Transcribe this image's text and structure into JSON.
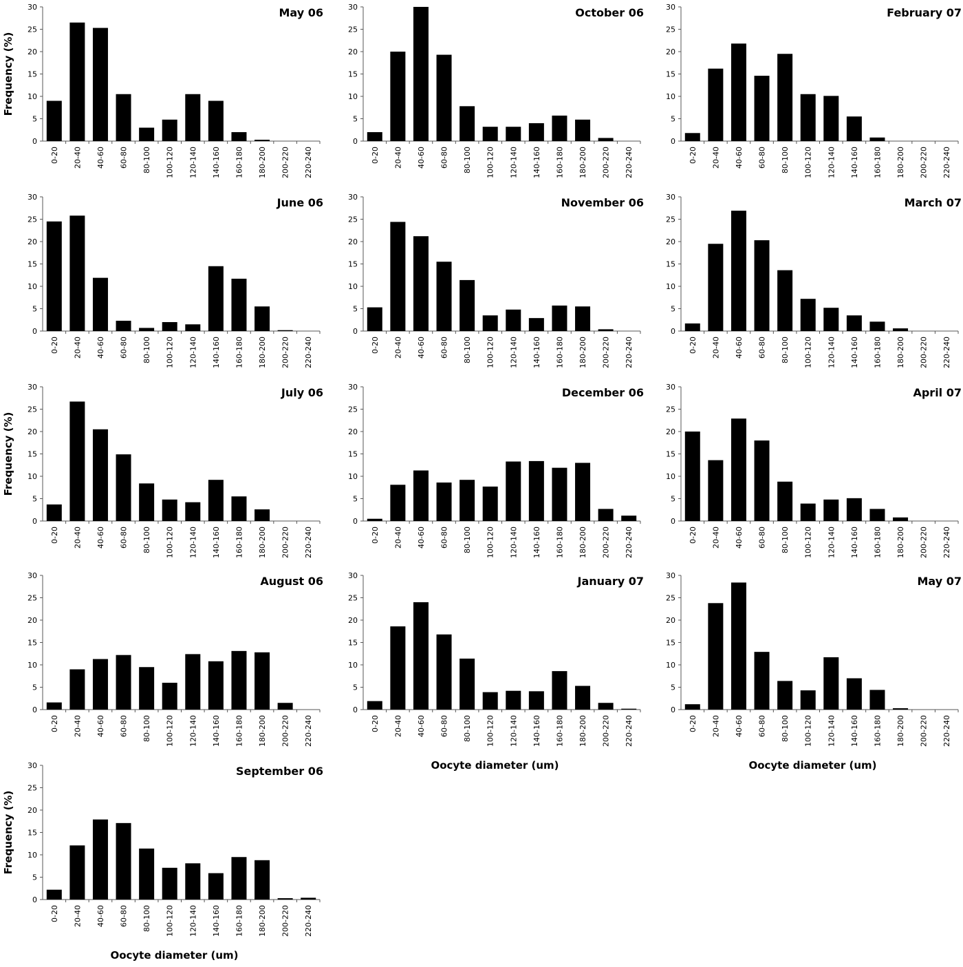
{
  "chart_data": [
    {
      "type": "bar",
      "title": "May 06",
      "y_label": "Frequency (%)",
      "categories": [
        "0-20",
        "20-40",
        "40-60",
        "60-80",
        "80-100",
        "100-120",
        "120-140",
        "140-160",
        "160-180",
        "180-200",
        "200-220",
        "220-240"
      ],
      "values": [
        9,
        26.5,
        25.3,
        10.5,
        3,
        4.8,
        10.5,
        9,
        2,
        0.3,
        0,
        0
      ],
      "color": "#000000",
      "ylim": [
        0,
        30
      ],
      "yticks": [
        0,
        5,
        10,
        15,
        20,
        25,
        30
      ]
    },
    {
      "type": "bar",
      "title": "June 06",
      "categories": [
        "0-20",
        "20-40",
        "40-60",
        "60-80",
        "80-100",
        "100-120",
        "120-140",
        "140-160",
        "160-180",
        "180-200",
        "200-220",
        "220-240"
      ],
      "values": [
        24.5,
        25.8,
        11.9,
        2.3,
        0.7,
        2,
        1.5,
        14.5,
        11.7,
        5.5,
        0.2,
        0
      ],
      "color": "#000000",
      "ylim": [
        0,
        30
      ],
      "yticks": [
        0,
        5,
        10,
        15,
        20,
        25,
        30
      ]
    },
    {
      "type": "bar",
      "title": "July 06",
      "y_label": "Frequency (%)",
      "categories": [
        "0-20",
        "20-40",
        "40-60",
        "60-80",
        "80-100",
        "100-120",
        "120-140",
        "140-160",
        "160-180",
        "180-200",
        "200-220",
        "220-240"
      ],
      "values": [
        3.7,
        26.7,
        20.5,
        14.9,
        8.4,
        4.8,
        4.2,
        9.2,
        5.5,
        2.6,
        0,
        0
      ],
      "color": "#000000",
      "ylim": [
        0,
        30
      ],
      "yticks": [
        0,
        5,
        10,
        15,
        20,
        25,
        30
      ]
    },
    {
      "type": "bar",
      "title": "August 06",
      "categories": [
        "0-20",
        "20-40",
        "40-60",
        "60-80",
        "80-100",
        "100-120",
        "120-140",
        "140-160",
        "160-180",
        "180-200",
        "200-220",
        "220-240"
      ],
      "values": [
        1.6,
        9,
        11.3,
        12.2,
        9.5,
        6,
        12.4,
        10.8,
        13.1,
        12.8,
        1.5,
        0
      ],
      "color": "#000000",
      "ylim": [
        0,
        30
      ],
      "yticks": [
        0,
        5,
        10,
        15,
        20,
        25,
        30
      ]
    },
    {
      "type": "bar",
      "title": "September 06",
      "y_label": "Frequency (%)",
      "x_label": "Oocyte diameter (um)",
      "categories": [
        "0-20",
        "20-40",
        "40-60",
        "60-80",
        "80-100",
        "100-120",
        "120-140",
        "140-160",
        "160-180",
        "180-200",
        "200-220",
        "220-240"
      ],
      "values": [
        2.2,
        12.1,
        17.9,
        17.1,
        11.4,
        7.1,
        8.1,
        5.9,
        9.5,
        8.8,
        0.3,
        0.4
      ],
      "color": "#000000",
      "ylim": [
        0,
        30
      ],
      "yticks": [
        0,
        5,
        10,
        15,
        20,
        25,
        30
      ]
    },
    {
      "type": "bar",
      "title": "October 06",
      "categories": [
        "0-20",
        "20-40",
        "40-60",
        "60-80",
        "80-100",
        "100-120",
        "120-140",
        "140-160",
        "160-180",
        "180-200",
        "200-220",
        "220-240"
      ],
      "values": [
        2,
        20,
        30,
        19.3,
        7.8,
        3.2,
        3.2,
        4,
        5.7,
        4.8,
        0.7,
        0
      ],
      "color": "#000000",
      "ylim": [
        0,
        30
      ],
      "yticks": [
        0,
        5,
        10,
        15,
        20,
        25,
        30
      ]
    },
    {
      "type": "bar",
      "title": "November 06",
      "categories": [
        "0-20",
        "20-40",
        "40-60",
        "60-80",
        "80-100",
        "100-120",
        "120-140",
        "140-160",
        "160-180",
        "180-200",
        "200-220",
        "220-240"
      ],
      "values": [
        5.3,
        24.4,
        21.2,
        15.5,
        11.4,
        3.5,
        4.8,
        2.9,
        5.7,
        5.5,
        0.4,
        0
      ],
      "color": "#000000",
      "ylim": [
        0,
        30
      ],
      "yticks": [
        0,
        5,
        10,
        15,
        20,
        25,
        30
      ]
    },
    {
      "type": "bar",
      "title": "December 06",
      "categories": [
        "0-20",
        "20-40",
        "40-60",
        "60-80",
        "80-100",
        "100-120",
        "120-140",
        "140-160",
        "160-180",
        "180-200",
        "200-220",
        "220-240"
      ],
      "values": [
        0.5,
        8.1,
        11.3,
        8.6,
        9.2,
        7.7,
        13.3,
        13.4,
        11.9,
        13,
        2.7,
        1.2
      ],
      "color": "#000000",
      "ylim": [
        0,
        30
      ],
      "yticks": [
        0,
        5,
        10,
        15,
        20,
        25,
        30
      ]
    },
    {
      "type": "bar",
      "title": "January 07",
      "x_label": "Oocyte diameter (um)",
      "categories": [
        "0-20",
        "20-40",
        "40-60",
        "60-80",
        "80-100",
        "100-120",
        "120-140",
        "140-160",
        "160-180",
        "180-200",
        "200-220",
        "220-240"
      ],
      "values": [
        1.9,
        18.6,
        24,
        16.8,
        11.4,
        3.9,
        4.2,
        4.1,
        8.6,
        5.3,
        1.5,
        0.2
      ],
      "color": "#000000",
      "ylim": [
        0,
        30
      ],
      "yticks": [
        0,
        5,
        10,
        15,
        20,
        25,
        30
      ]
    },
    {
      "type": "bar",
      "title": "February 07",
      "categories": [
        "0-20",
        "20-40",
        "40-60",
        "60-80",
        "80-100",
        "100-120",
        "120-140",
        "140-160",
        "160-180",
        "180-200",
        "200-220",
        "220-240"
      ],
      "values": [
        1.8,
        16.2,
        21.8,
        14.6,
        19.5,
        10.5,
        10.1,
        5.5,
        0.8,
        0,
        0,
        0
      ],
      "color": "#000000",
      "ylim": [
        0,
        30
      ],
      "yticks": [
        0,
        5,
        10,
        15,
        20,
        25,
        30
      ]
    },
    {
      "type": "bar",
      "title": "March 07",
      "categories": [
        "0-20",
        "20-40",
        "40-60",
        "60-80",
        "80-100",
        "100-120",
        "120-140",
        "140-160",
        "160-180",
        "180-200",
        "200-220",
        "220-240"
      ],
      "values": [
        1.7,
        19.5,
        26.9,
        20.3,
        13.6,
        7.2,
        5.2,
        3.5,
        2.1,
        0.6,
        0,
        0
      ],
      "color": "#000000",
      "ylim": [
        0,
        30
      ],
      "yticks": [
        0,
        5,
        10,
        15,
        20,
        25,
        30
      ]
    },
    {
      "type": "bar",
      "title": "April 07",
      "categories": [
        "0-20",
        "20-40",
        "40-60",
        "60-80",
        "80-100",
        "100-120",
        "120-140",
        "140-160",
        "160-180",
        "180-200",
        "200-220",
        "220-240"
      ],
      "values": [
        20,
        13.6,
        22.9,
        18,
        8.8,
        3.9,
        4.8,
        5.1,
        2.7,
        0.8,
        0,
        0
      ],
      "color": "#000000",
      "ylim": [
        0,
        30
      ],
      "yticks": [
        0,
        5,
        10,
        15,
        20,
        25,
        30
      ]
    },
    {
      "type": "bar",
      "title": "May 07",
      "x_label": "Oocyte diameter (um)",
      "categories": [
        "0-20",
        "20-40",
        "40-60",
        "60-80",
        "80-100",
        "100-120",
        "120-140",
        "140-160",
        "160-180",
        "180-200",
        "200-220",
        "220-240"
      ],
      "values": [
        1.2,
        23.8,
        28.4,
        12.9,
        6.4,
        4.3,
        11.7,
        7,
        4.4,
        0.3,
        0,
        0
      ],
      "color": "#000000",
      "ylim": [
        0,
        30
      ],
      "yticks": [
        0,
        5,
        10,
        15,
        20,
        25,
        30
      ]
    }
  ]
}
